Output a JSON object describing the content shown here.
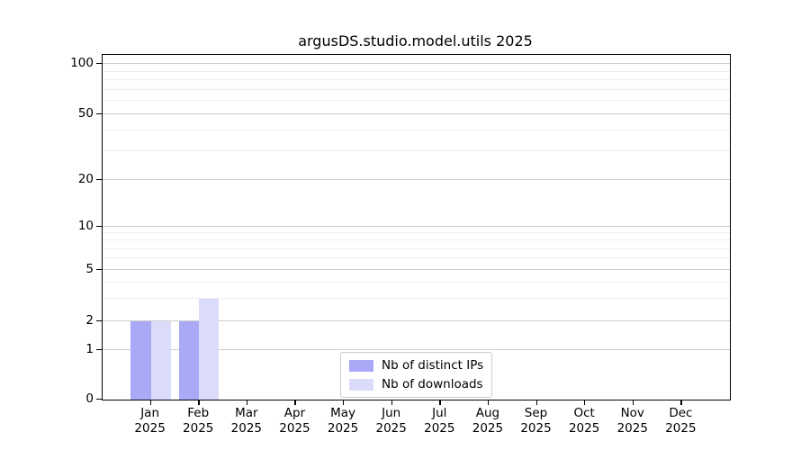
{
  "title": "argusDS.studio.model.utils 2025",
  "chart_data": {
    "type": "bar",
    "title": "argusDS.studio.model.utils 2025",
    "categories": [
      "Jan",
      "Feb",
      "Mar",
      "Apr",
      "May",
      "Jun",
      "Jul",
      "Aug",
      "Sep",
      "Oct",
      "Nov",
      "Dec"
    ],
    "category_year": "2025",
    "series": [
      {
        "name": "Nb of distinct IPs",
        "color": "#a9a9f7",
        "values": [
          2,
          2,
          0,
          0,
          0,
          0,
          0,
          0,
          0,
          0,
          0,
          0
        ]
      },
      {
        "name": "Nb of downloads",
        "color": "#dbdbfa",
        "values": [
          2,
          3,
          0,
          0,
          0,
          0,
          0,
          0,
          0,
          0,
          0,
          0
        ]
      }
    ],
    "xlabel": "",
    "ylabel": "",
    "yscale": "log-with-zero",
    "y_major_ticks": [
      0,
      1,
      2,
      5,
      10,
      20,
      50,
      100
    ],
    "y_minor_ticks": [
      3,
      4,
      6,
      7,
      8,
      9,
      30,
      40,
      60,
      70,
      80,
      90
    ],
    "ylim": [
      0,
      107
    ],
    "grid": "horizontal-major-and-minor",
    "legend_position": "lower-center"
  },
  "colors": {
    "bar_distinct_ips": "#a9a9f7",
    "bar_downloads": "#dbdbfa",
    "major_grid": "#cdcdcd",
    "minor_grid": "#ededed",
    "axis": "#000000",
    "legend_border": "#cccccc",
    "background": "#ffffff"
  }
}
